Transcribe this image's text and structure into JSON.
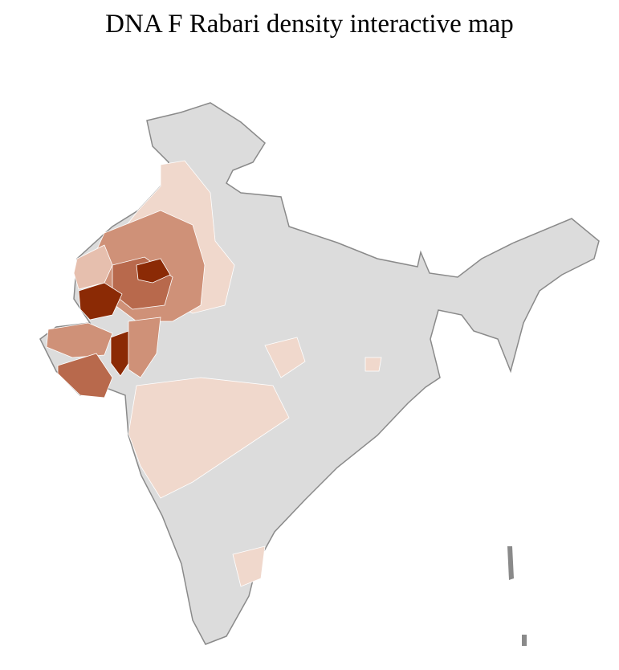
{
  "title": "DNA F Rabari density interactive map",
  "colors": {
    "no_data": "#dcdcdc",
    "very_low": "#f0d8cc",
    "low": "#e6bfae",
    "medium": "#cf9178",
    "high": "#b8694c",
    "very_high": "#8b2a05",
    "state_border": "#8a8a8a",
    "district_border": "#ffffff"
  }
}
